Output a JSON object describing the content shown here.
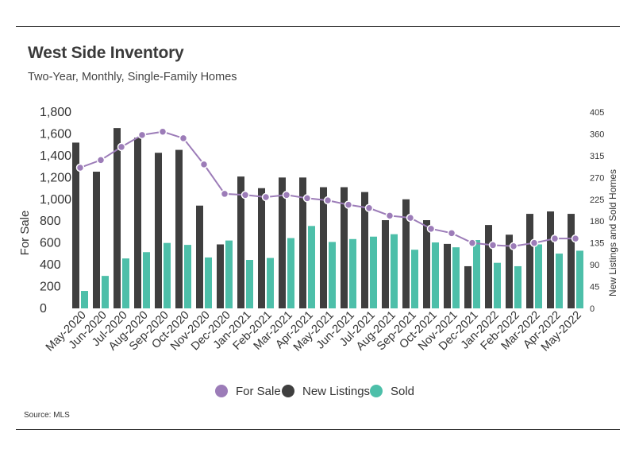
{
  "title": "West Side Inventory",
  "subtitle": "Two-Year, Monthly, Single-Family Homes",
  "source": "Source:  MLS",
  "colors": {
    "for_sale": "#9c7cb8",
    "new_listings": "#3f3f3f",
    "sold": "#4dbfa9"
  },
  "chart_data": {
    "type": "bar",
    "categories": [
      "May-2020",
      "Jun-2020",
      "Jul-2020",
      "Aug-2020",
      "Sep-2020",
      "Oct-2020",
      "Nov-2020",
      "Dec-2020",
      "Jan-2021",
      "Feb-2021",
      "Mar-2021",
      "Apr-2021",
      "May-2021",
      "Jun-2021",
      "Jul-2021",
      "Aug-2021",
      "Sep-2021",
      "Oct-2021",
      "Nov-2021",
      "Dec-2021",
      "Jan-2022",
      "Feb-2022",
      "Mar-2022",
      "Apr-2022",
      "May-2022"
    ],
    "series": [
      {
        "name": "For Sale",
        "type": "line",
        "axis": "left",
        "values": [
          1290,
          1360,
          1480,
          1590,
          1620,
          1560,
          1320,
          1050,
          1040,
          1020,
          1040,
          1010,
          990,
          950,
          920,
          850,
          830,
          730,
          690,
          600,
          580,
          570,
          600,
          640,
          640
        ]
      },
      {
        "name": "New Listings",
        "type": "bar",
        "axis": "right",
        "values": [
          342,
          282,
          372,
          352,
          321,
          327,
          212,
          132,
          272,
          248,
          270,
          270,
          250,
          250,
          240,
          182,
          225,
          182,
          133,
          87,
          172,
          152,
          195,
          200,
          195
        ]
      },
      {
        "name": "Sold",
        "type": "bar",
        "axis": "right",
        "values": [
          36,
          67,
          103,
          116,
          135,
          131,
          105,
          140,
          100,
          104,
          145,
          170,
          137,
          143,
          148,
          153,
          121,
          136,
          126,
          141,
          94,
          87,
          132,
          113,
          119
        ]
      }
    ],
    "y_left": {
      "label": "For Sale",
      "ylim": [
        0,
        1800
      ],
      "ticks": [
        "0",
        "200",
        "400",
        "600",
        "800",
        "1,000",
        "1,200",
        "1,400",
        "1,600",
        "1,800"
      ]
    },
    "y_right": {
      "label": "New Listings and Sold Homes",
      "ylim": [
        0,
        405
      ],
      "ticks": [
        "0",
        "45",
        "90",
        "135",
        "180",
        "225",
        "270",
        "315",
        "360",
        "405"
      ]
    },
    "legend": {
      "placement": "bottom",
      "entries": [
        "For Sale",
        "New Listings",
        "Sold"
      ]
    }
  }
}
